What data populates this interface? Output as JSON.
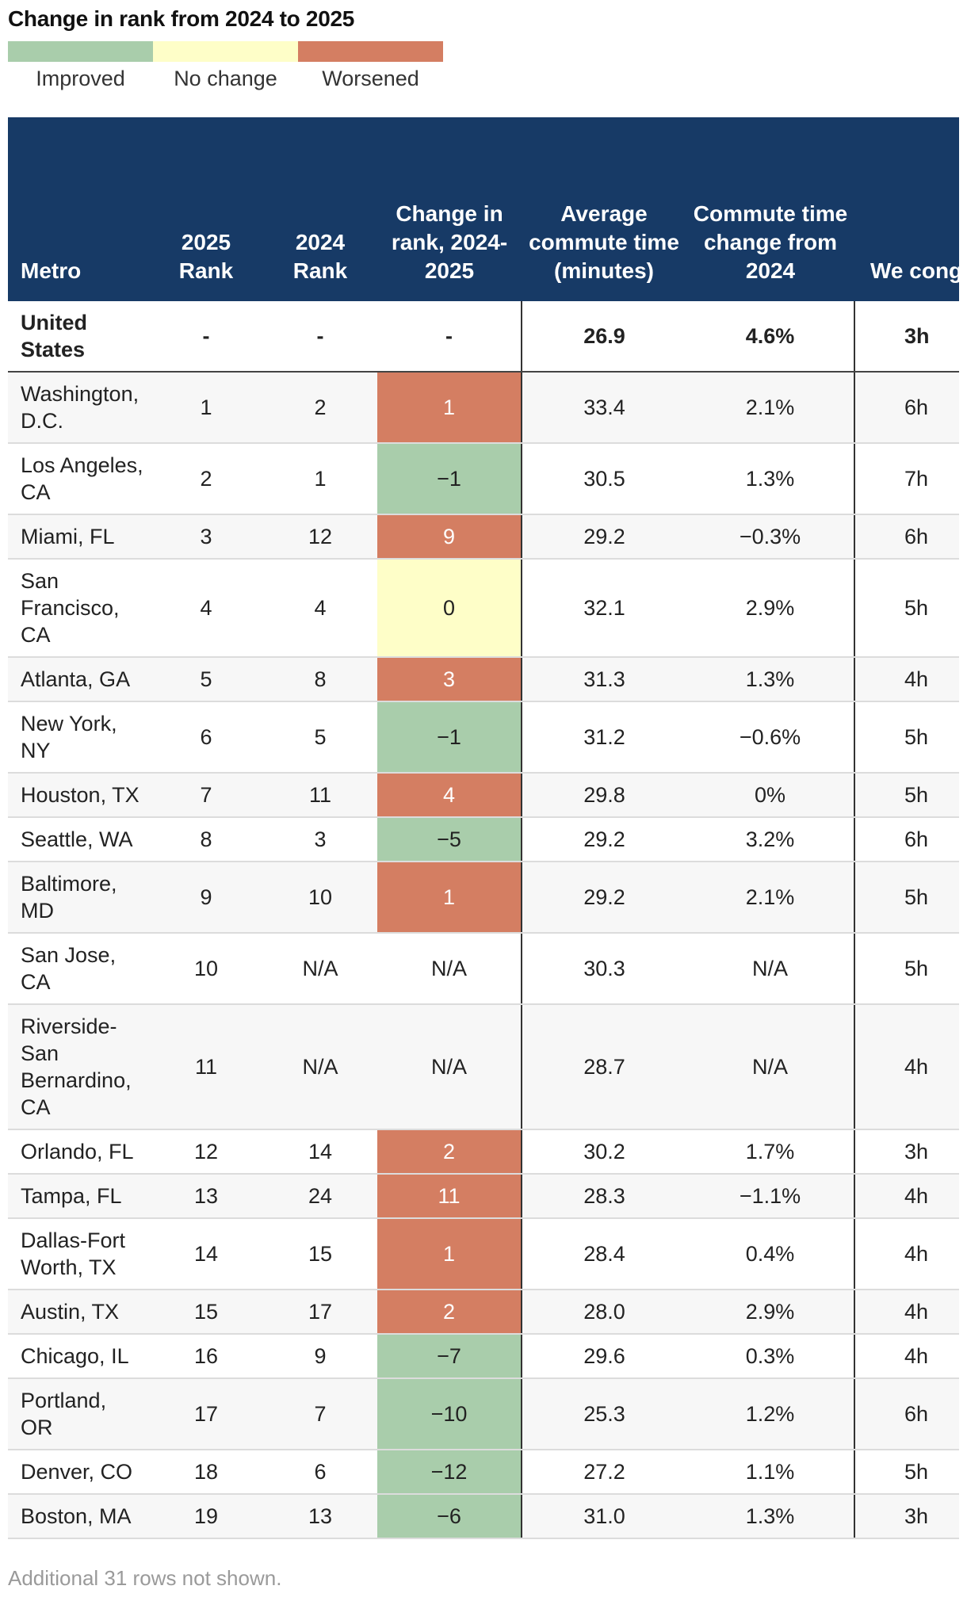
{
  "legend": {
    "title": "Change in rank from 2024 to 2025",
    "items": [
      {
        "label": "Improved",
        "color": "#a9cdab"
      },
      {
        "label": "No change",
        "color": "#fefec8"
      },
      {
        "label": "Worsened",
        "color": "#d47e62"
      }
    ]
  },
  "chart_data": {
    "type": "table",
    "title": "Change in rank from 2024 to 2025",
    "columns": [
      "Metro",
      "2025 Rank",
      "2024 Rank",
      "Change in rank, 2024-2025",
      "Average commute time (minutes)",
      "Commute time change from 2024",
      "We cong t"
    ],
    "rows": [
      [
        "United States",
        "-",
        "-",
        "-",
        "26.9",
        "4.6%",
        "3h"
      ],
      [
        "Washington, D.C.",
        "1",
        "2",
        "1",
        "33.4",
        "2.1%",
        "6h"
      ],
      [
        "Los Angeles, CA",
        "2",
        "1",
        "−1",
        "30.5",
        "1.3%",
        "7h"
      ],
      [
        "Miami, FL",
        "3",
        "12",
        "9",
        "29.2",
        "−0.3%",
        "6h"
      ],
      [
        "San Francisco, CA",
        "4",
        "4",
        "0",
        "32.1",
        "2.9%",
        "5h"
      ],
      [
        "Atlanta, GA",
        "5",
        "8",
        "3",
        "31.3",
        "1.3%",
        "4h"
      ],
      [
        "New York, NY",
        "6",
        "5",
        "−1",
        "31.2",
        "−0.6%",
        "5h"
      ],
      [
        "Houston, TX",
        "7",
        "11",
        "4",
        "29.8",
        "0%",
        "5h"
      ],
      [
        "Seattle, WA",
        "8",
        "3",
        "−5",
        "29.2",
        "3.2%",
        "6h"
      ],
      [
        "Baltimore, MD",
        "9",
        "10",
        "1",
        "29.2",
        "2.1%",
        "5h"
      ],
      [
        "San Jose, CA",
        "10",
        "N/A",
        "N/A",
        "30.3",
        "N/A",
        "5h"
      ],
      [
        "Riverside-San Bernardino, CA",
        "11",
        "N/A",
        "N/A",
        "28.7",
        "N/A",
        "4h"
      ],
      [
        "Orlando, FL",
        "12",
        "14",
        "2",
        "30.2",
        "1.7%",
        "3h"
      ],
      [
        "Tampa, FL",
        "13",
        "24",
        "11",
        "28.3",
        "−1.1%",
        "4h"
      ],
      [
        "Dallas-Fort Worth, TX",
        "14",
        "15",
        "1",
        "28.4",
        "0.4%",
        "4h"
      ],
      [
        "Austin, TX",
        "15",
        "17",
        "2",
        "28.0",
        "2.9%",
        "4h"
      ],
      [
        "Chicago, IL",
        "16",
        "9",
        "−7",
        "29.6",
        "0.3%",
        "4h"
      ],
      [
        "Portland, OR",
        "17",
        "7",
        "−10",
        "25.3",
        "1.2%",
        "6h"
      ],
      [
        "Denver, CO",
        "18",
        "6",
        "−12",
        "27.2",
        "1.1%",
        "5h"
      ],
      [
        "Boston, MA",
        "19",
        "13",
        "−6",
        "31.0",
        "1.3%",
        "3h"
      ]
    ],
    "change_status": [
      "none",
      "worsened",
      "improved",
      "worsened",
      "nochange",
      "worsened",
      "improved",
      "worsened",
      "improved",
      "worsened",
      "none",
      "none",
      "worsened",
      "worsened",
      "worsened",
      "worsened",
      "improved",
      "improved",
      "improved",
      "improved"
    ]
  },
  "footnote": "Additional 31 rows not shown."
}
